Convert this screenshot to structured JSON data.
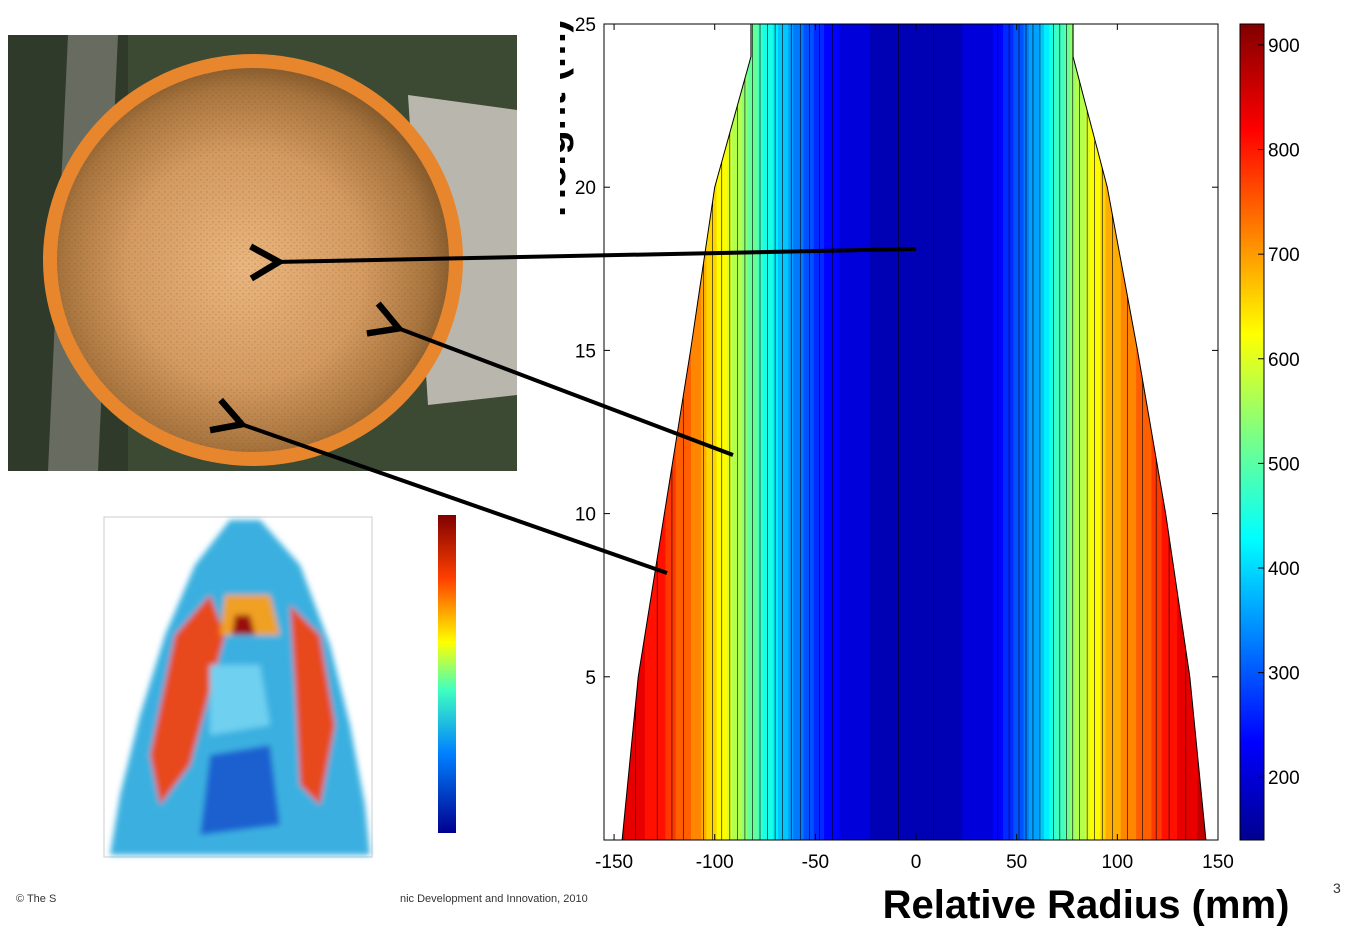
{
  "chart_data": {
    "type": "heatmap",
    "subtype": "filled-contour",
    "xlabel": "Relative Radius (mm)",
    "ylabel": "Height (m)",
    "xlim": [
      -155,
      150
    ],
    "ylim": [
      0,
      25
    ],
    "x_ticks": [
      -150,
      -100,
      -50,
      0,
      50,
      100,
      150
    ],
    "y_ticks": [
      5,
      10,
      15,
      20,
      25
    ],
    "colorbar": {
      "ticks": [
        200,
        300,
        400,
        500,
        600,
        700,
        800,
        900
      ],
      "range": [
        140,
        920
      ],
      "colormap": "jet"
    },
    "stem_half_width_mm": [
      {
        "height": 0,
        "left": -146,
        "right": 144
      },
      {
        "height": 5,
        "left": -138,
        "right": 136
      },
      {
        "height": 10,
        "left": -125,
        "right": 124
      },
      {
        "height": 15,
        "left": -112,
        "right": 110
      },
      {
        "height": 20,
        "left": -100,
        "right": 95
      },
      {
        "height": 24,
        "left": -82,
        "right": 78
      },
      {
        "height": 25,
        "left": -82,
        "right": 78
      }
    ],
    "radial_profile": [
      {
        "r": -150,
        "value": 870
      },
      {
        "r": -125,
        "value": 800
      },
      {
        "r": -110,
        "value": 720
      },
      {
        "r": -95,
        "value": 620
      },
      {
        "r": -80,
        "value": 500
      },
      {
        "r": -65,
        "value": 380
      },
      {
        "r": -50,
        "value": 280
      },
      {
        "r": -35,
        "value": 210
      },
      {
        "r": 0,
        "value": 170
      },
      {
        "r": 35,
        "value": 210
      },
      {
        "r": 50,
        "value": 290
      },
      {
        "r": 65,
        "value": 420
      },
      {
        "r": 80,
        "value": 560
      },
      {
        "r": 95,
        "value": 680
      },
      {
        "r": 115,
        "value": 760
      },
      {
        "r": 130,
        "value": 830
      },
      {
        "r": 150,
        "value": 880
      }
    ]
  },
  "footer": {
    "left": "© The S",
    "mid": "nic Development and Innovation, 2010",
    "page": "3"
  }
}
